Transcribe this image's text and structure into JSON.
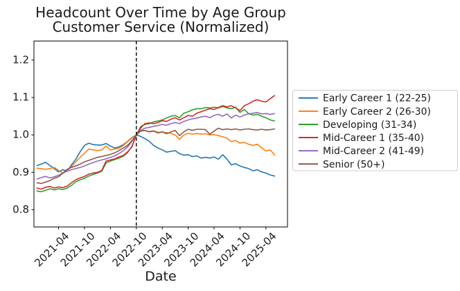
{
  "figure": {
    "title_line1": "Headcount Over Time by Age Group",
    "title_line2": "Customer Service (Normalized)",
    "xlabel": "Date"
  },
  "chart_data": {
    "type": "line",
    "title": "Headcount Over Time by Age Group",
    "subtitle": "Customer Service (Normalized)",
    "xlabel": "Date",
    "ylabel": "",
    "grid": false,
    "legend_position": "outside-right",
    "ylim": [
      0.754,
      1.251
    ],
    "xlim_index": [
      -0.7,
      58.0
    ],
    "y_ticks": [
      0.8,
      0.9,
      1.0,
      1.1,
      1.2
    ],
    "x_tick_labels": [
      "2021-04",
      "2021-10",
      "2022-04",
      "2022-10",
      "2023-04",
      "2023-10",
      "2024-04",
      "2024-10",
      "2025-04"
    ],
    "vline": {
      "x": "2022-10",
      "style": "dashed",
      "color": "#000000"
    },
    "x": [
      "2020-11",
      "2020-12",
      "2021-01",
      "2021-02",
      "2021-03",
      "2021-04",
      "2021-05",
      "2021-06",
      "2021-07",
      "2021-08",
      "2021-09",
      "2021-10",
      "2021-11",
      "2021-12",
      "2022-01",
      "2022-02",
      "2022-03",
      "2022-04",
      "2022-05",
      "2022-06",
      "2022-07",
      "2022-08",
      "2022-09",
      "2022-10",
      "2022-11",
      "2022-12",
      "2023-01",
      "2023-02",
      "2023-03",
      "2023-04",
      "2023-05",
      "2023-06",
      "2023-07",
      "2023-08",
      "2023-09",
      "2023-10",
      "2023-11",
      "2023-12",
      "2024-01",
      "2024-02",
      "2024-03",
      "2024-04",
      "2024-05",
      "2024-06",
      "2024-07",
      "2024-08",
      "2024-09",
      "2024-10",
      "2024-11",
      "2024-12",
      "2025-01",
      "2025-02",
      "2025-03",
      "2025-04",
      "2025-05",
      "2025-06"
    ],
    "series": [
      {
        "name": "Early Career 1 (22-25)",
        "color": "#1f77b4",
        "values": [
          0.918,
          0.922,
          0.927,
          0.918,
          0.91,
          0.901,
          0.907,
          0.903,
          0.92,
          0.935,
          0.955,
          0.972,
          0.978,
          0.974,
          0.973,
          0.973,
          0.977,
          0.97,
          0.965,
          0.968,
          0.974,
          0.983,
          0.993,
          1.0,
          0.996,
          0.99,
          0.983,
          0.972,
          0.965,
          0.96,
          0.954,
          0.956,
          0.958,
          0.95,
          0.946,
          0.947,
          0.942,
          0.944,
          0.938,
          0.94,
          0.938,
          0.941,
          0.935,
          0.947,
          0.935,
          0.92,
          0.923,
          0.917,
          0.913,
          0.91,
          0.904,
          0.907,
          0.901,
          0.898,
          0.893,
          0.89
        ]
      },
      {
        "name": "Early Career 2 (26-30)",
        "color": "#ff7f0e",
        "values": [
          0.911,
          0.91,
          0.908,
          0.91,
          0.913,
          0.905,
          0.898,
          0.905,
          0.915,
          0.928,
          0.94,
          0.951,
          0.962,
          0.96,
          0.958,
          0.96,
          0.97,
          0.96,
          0.962,
          0.964,
          0.972,
          0.982,
          0.992,
          1.0,
          1.01,
          1.012,
          1.009,
          1.011,
          1.007,
          1.008,
          1.006,
          1.004,
          1.0,
          0.988,
          1.0,
          1.004,
          1.002,
          1.004,
          1.002,
          1.003,
          1.0,
          1.001,
          0.998,
          0.995,
          0.991,
          0.982,
          0.985,
          0.978,
          0.98,
          0.975,
          0.972,
          0.975,
          0.966,
          0.957,
          0.96,
          0.946
        ]
      },
      {
        "name": "Developing (31-34)",
        "color": "#2ca02c",
        "values": [
          0.85,
          0.848,
          0.852,
          0.856,
          0.853,
          0.856,
          0.854,
          0.858,
          0.865,
          0.875,
          0.88,
          0.884,
          0.89,
          0.894,
          0.898,
          0.903,
          0.925,
          0.93,
          0.934,
          0.938,
          0.943,
          0.953,
          0.97,
          1.0,
          1.022,
          1.028,
          1.03,
          1.035,
          1.037,
          1.04,
          1.045,
          1.05,
          1.052,
          1.046,
          1.058,
          1.062,
          1.067,
          1.07,
          1.07,
          1.073,
          1.072,
          1.074,
          1.072,
          1.076,
          1.072,
          1.07,
          1.074,
          1.06,
          1.068,
          1.057,
          1.053,
          1.055,
          1.05,
          1.046,
          1.04,
          1.037
        ]
      },
      {
        "name": "Mid-Career 1 (35-40)",
        "color": "#d62728",
        "values": [
          0.858,
          0.855,
          0.86,
          0.862,
          0.858,
          0.861,
          0.859,
          0.863,
          0.872,
          0.88,
          0.885,
          0.889,
          0.895,
          0.898,
          0.9,
          0.905,
          0.93,
          0.933,
          0.936,
          0.941,
          0.945,
          0.955,
          0.968,
          1.0,
          1.018,
          1.03,
          1.032,
          1.03,
          1.033,
          1.038,
          1.036,
          1.042,
          1.046,
          1.04,
          1.046,
          1.052,
          1.05,
          1.058,
          1.062,
          1.066,
          1.07,
          1.068,
          1.073,
          1.078,
          1.075,
          1.078,
          1.072,
          1.065,
          1.078,
          1.083,
          1.09,
          1.094,
          1.09,
          1.088,
          1.097,
          1.105
        ]
      },
      {
        "name": "Mid-Career 2 (41-49)",
        "color": "#9467bd",
        "values": [
          0.882,
          0.886,
          0.889,
          0.885,
          0.888,
          0.892,
          0.898,
          0.903,
          0.907,
          0.91,
          0.913,
          0.917,
          0.922,
          0.926,
          0.93,
          0.933,
          0.936,
          0.94,
          0.944,
          0.95,
          0.958,
          0.968,
          0.983,
          1.0,
          1.012,
          1.018,
          1.02,
          1.023,
          1.025,
          1.028,
          1.026,
          1.03,
          1.033,
          1.03,
          1.036,
          1.04,
          1.043,
          1.045,
          1.048,
          1.05,
          1.046,
          1.052,
          1.055,
          1.05,
          1.056,
          1.045,
          1.053,
          1.048,
          1.053,
          1.056,
          1.058,
          1.06,
          1.056,
          1.057,
          1.055,
          1.057
        ]
      },
      {
        "name": "Senior (50+)",
        "color": "#8c564b",
        "values": [
          0.872,
          0.87,
          0.874,
          0.878,
          0.884,
          0.888,
          0.898,
          0.908,
          0.913,
          0.917,
          0.922,
          0.928,
          0.932,
          0.936,
          0.94,
          0.942,
          0.945,
          0.948,
          0.952,
          0.958,
          0.965,
          0.972,
          0.985,
          1.0,
          1.01,
          1.012,
          1.008,
          1.01,
          1.005,
          1.008,
          1.003,
          1.008,
          1.012,
          0.998,
          1.008,
          1.015,
          1.012,
          1.015,
          1.015,
          1.014,
          1.002,
          1.01,
          1.018,
          1.014,
          1.016,
          1.014,
          1.016,
          1.013,
          1.015,
          1.016,
          1.014,
          1.013,
          1.015,
          1.013,
          1.014,
          1.016
        ]
      }
    ]
  }
}
